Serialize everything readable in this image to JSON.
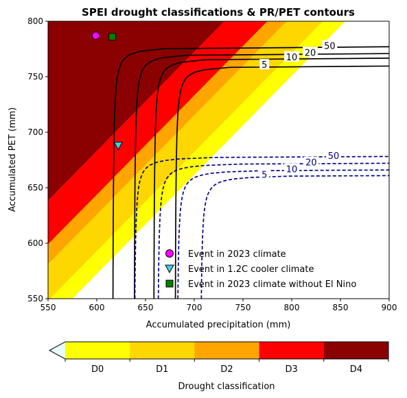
{
  "chart_data": {
    "type": "contour",
    "title": "SPEI drought classifications & PR/PET contours",
    "xlabel": "Accumulated precipitation (mm)",
    "ylabel": "Accumulated PET (mm)",
    "xlim": [
      550,
      900
    ],
    "ylim": [
      550,
      800
    ],
    "xticks": [
      "550",
      "600",
      "650",
      "700",
      "750",
      "800",
      "850",
      "900"
    ],
    "yticks": [
      "550",
      "600",
      "650",
      "700",
      "750",
      "800"
    ],
    "grid": false,
    "classification_bands": [
      {
        "label": "D0",
        "color": "#ffff00",
        "x_at_pet_800": 855
      },
      {
        "label": "D1",
        "color": "#ffd700",
        "x_at_pet_800": 832
      },
      {
        "label": "D2",
        "color": "#ffa500",
        "x_at_pet_800": 795
      },
      {
        "label": "D3",
        "color": "#ff0000",
        "x_at_pet_800": 775
      },
      {
        "label": "D4",
        "color": "#8b0000",
        "x_at_pet_800": 731
      }
    ],
    "band_slope_pet_per_pr": 0.893,
    "contour_sets": [
      {
        "style": "solid",
        "color": "#000000",
        "contours": [
          {
            "label": "50",
            "pr_asymptote": 616,
            "pet_asymptote": 778
          },
          {
            "label": "20",
            "pr_asymptote": 638,
            "pet_asymptote": 772
          },
          {
            "label": "10",
            "pr_asymptote": 658,
            "pet_asymptote": 768
          },
          {
            "label": "5",
            "pr_asymptote": 680,
            "pet_asymptote": 761
          }
        ]
      },
      {
        "style": "dashed",
        "color": "#00008b",
        "contours": [
          {
            "label": "50",
            "pr_asymptote": 638,
            "pet_asymptote": 679
          },
          {
            "label": "20",
            "pr_asymptote": 662,
            "pet_asymptote": 673
          },
          {
            "label": "10",
            "pr_asymptote": 682,
            "pet_asymptote": 667
          },
          {
            "label": "5",
            "pr_asymptote": 706,
            "pet_asymptote": 662
          }
        ]
      }
    ],
    "series": [
      {
        "name": "Event in 2023 climate",
        "marker": "circle",
        "color": "#ff00ff",
        "x": [
          599
        ],
        "y": [
          787
        ]
      },
      {
        "name": "Event in 1.2C cooler climate",
        "marker": "triangle-down",
        "color": "#40d0e0",
        "x": [
          622
        ],
        "y": [
          688
        ]
      },
      {
        "name": "Event in 2023 climate without El Nino",
        "marker": "square",
        "color": "#008000",
        "x": [
          616
        ],
        "y": [
          786
        ]
      }
    ],
    "legend_position": "lower-right",
    "colorbar": {
      "label": "Drought classification",
      "tick_labels": [
        "D0",
        "D1",
        "D2",
        "D3",
        "D4"
      ],
      "extend": "min"
    }
  }
}
